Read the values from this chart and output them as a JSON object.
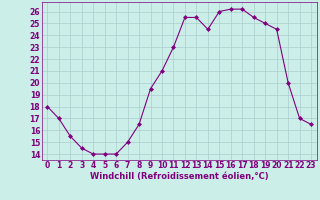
{
  "x": [
    0,
    1,
    2,
    3,
    4,
    5,
    6,
    7,
    8,
    9,
    10,
    11,
    12,
    13,
    14,
    15,
    16,
    17,
    18,
    19,
    20,
    21,
    22,
    23
  ],
  "y": [
    18,
    17,
    15.5,
    14.5,
    14,
    14,
    14,
    15,
    16.5,
    19.5,
    21,
    23,
    25.5,
    25.5,
    24.5,
    26,
    26.2,
    26.2,
    25.5,
    25,
    24.5,
    20,
    17,
    16.5
  ],
  "line_color": "#800080",
  "marker": "D",
  "marker_size": 2,
  "bg_color": "#cceee8",
  "grid_color": "#aacccc",
  "xlabel": "Windchill (Refroidissement éolien,°C)",
  "xlabel_fontsize": 6.0,
  "xtick_labels": [
    "0",
    "1",
    "2",
    "3",
    "4",
    "5",
    "6",
    "7",
    "8",
    "9",
    "10",
    "11",
    "12",
    "13",
    "14",
    "15",
    "16",
    "17",
    "18",
    "19",
    "20",
    "21",
    "22",
    "23"
  ],
  "ytick_labels": [
    "14",
    "15",
    "16",
    "17",
    "18",
    "19",
    "20",
    "21",
    "22",
    "23",
    "24",
    "25",
    "26"
  ],
  "yticks": [
    14,
    15,
    16,
    17,
    18,
    19,
    20,
    21,
    22,
    23,
    24,
    25,
    26
  ],
  "ylim": [
    13.5,
    26.8
  ],
  "xlim": [
    -0.5,
    23.5
  ],
  "tick_fontsize": 5.5
}
